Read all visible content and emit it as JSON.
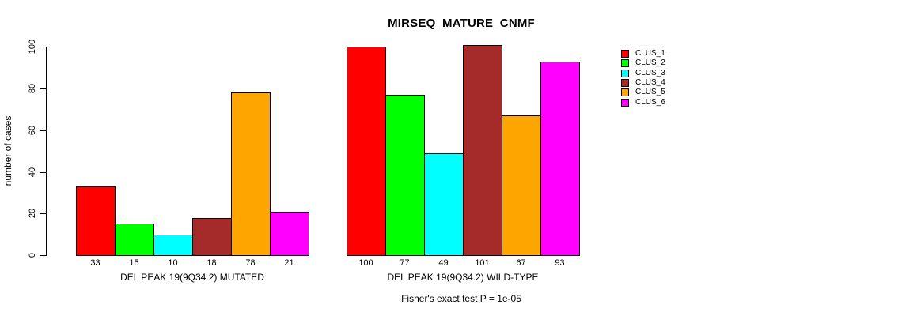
{
  "title": "MIRSEQ_MATURE_CNMF",
  "footer": "Fisher's exact test P = 1e-05",
  "y_axis": {
    "label": "number of cases",
    "ticks": [
      0,
      20,
      40,
      60,
      80,
      100
    ]
  },
  "legend": {
    "items": [
      {
        "label": "CLUS_1",
        "color": "#FF0000"
      },
      {
        "label": "CLUS_2",
        "color": "#00FF00"
      },
      {
        "label": "CLUS_3",
        "color": "#00FFFF"
      },
      {
        "label": "CLUS_4",
        "color": "#A52A2A"
      },
      {
        "label": "CLUS_5",
        "color": "#FFA500"
      },
      {
        "label": "CLUS_6",
        "color": "#FF00FF"
      }
    ]
  },
  "chart_data": {
    "type": "bar",
    "title": "MIRSEQ_MATURE_CNMF",
    "ylabel": "number of cases",
    "ylim": [
      0,
      100
    ],
    "yticks": [
      0,
      20,
      40,
      60,
      80,
      100
    ],
    "grid": false,
    "legend_position": "right",
    "series_labels": [
      "CLUS_1",
      "CLUS_2",
      "CLUS_3",
      "CLUS_4",
      "CLUS_5",
      "CLUS_6"
    ],
    "colors": [
      "#FF0000",
      "#00FF00",
      "#00FFFF",
      "#A52A2A",
      "#FFA500",
      "#FF00FF"
    ],
    "groups": [
      {
        "label": "DEL PEAK 19(9Q34.2) MUTATED",
        "values": [
          33,
          15,
          10,
          18,
          78,
          21
        ]
      },
      {
        "label": "DEL PEAK 19(9Q34.2) WILD-TYPE",
        "values": [
          100,
          77,
          49,
          101,
          67,
          93
        ]
      }
    ],
    "annotation": "Fisher's exact test P = 1e-05"
  }
}
